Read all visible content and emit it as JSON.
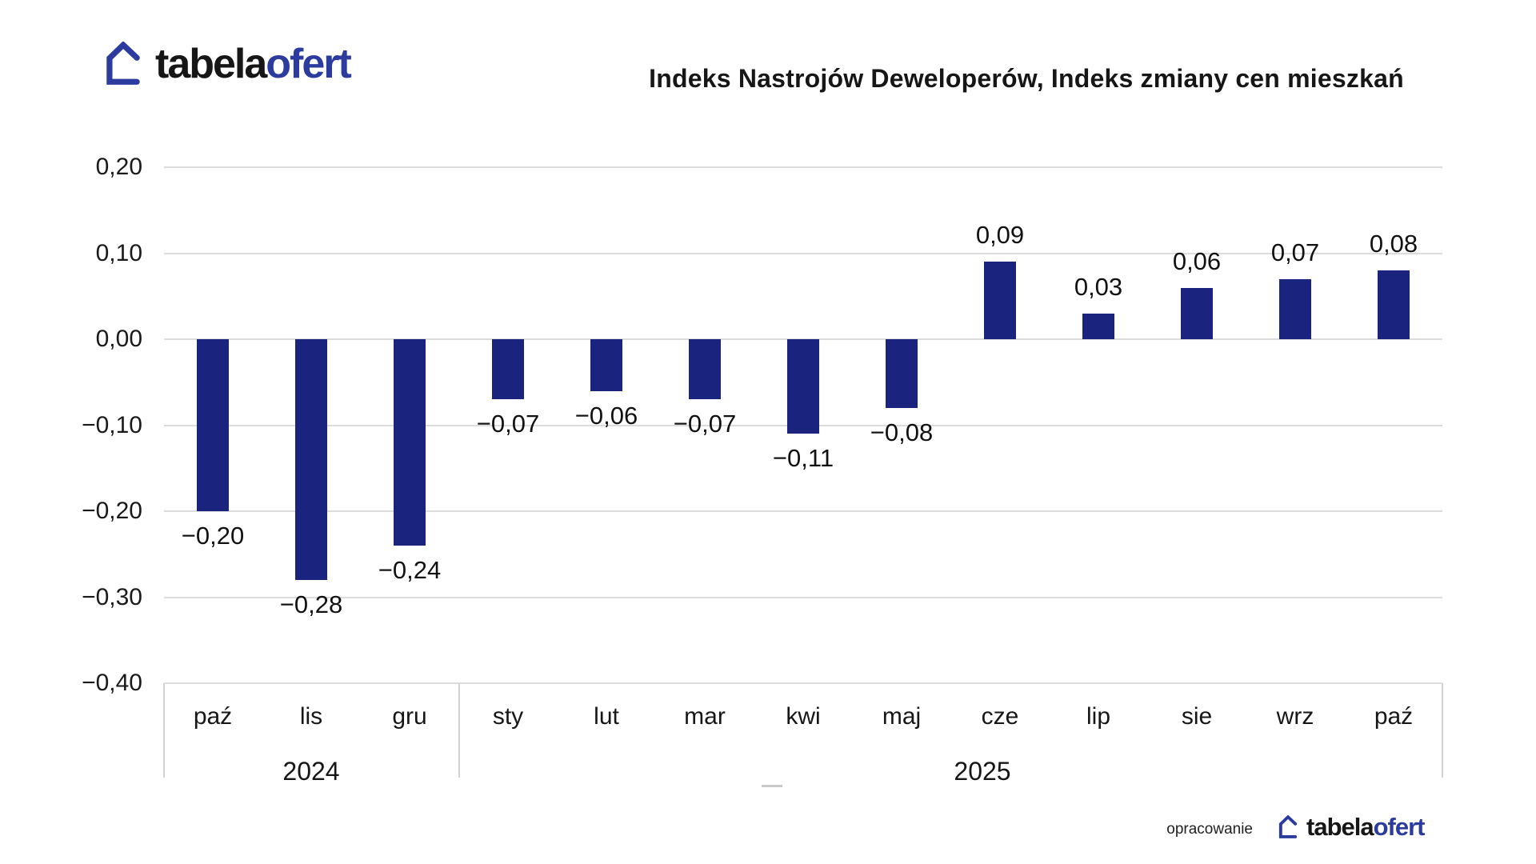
{
  "brand": {
    "name_black": "tabela",
    "name_blue": "ofert"
  },
  "header": {
    "title": "Indeks Nastrojów Deweloperów, Indeks zmiany cen mieszkań"
  },
  "footer": {
    "credit": "opracowanie",
    "brand_black": "tabela",
    "brand_blue": "ofert"
  },
  "colors": {
    "bar": "#1a237e",
    "brand_blue": "#2b3c9e",
    "grid": "#dcdcdc",
    "box_border": "#d2d2d2",
    "text": "#161616"
  },
  "chart_data": {
    "type": "bar",
    "title": "Indeks Nastrojów Deweloperów, Indeks zmiany cen mieszkań",
    "categories": [
      "paź",
      "lis",
      "gru",
      "sty",
      "lut",
      "mar",
      "kwi",
      "maj",
      "cze",
      "lip",
      "sie",
      "wrz",
      "paź"
    ],
    "values": [
      -0.2,
      -0.28,
      -0.24,
      -0.07,
      -0.06,
      -0.07,
      -0.11,
      -0.08,
      0.09,
      0.03,
      0.06,
      0.07,
      0.08
    ],
    "bar_labels": [
      "−0,20",
      "−0,28",
      "−0,24",
      "−0,07",
      "−0,06",
      "−0,07",
      "−0,11",
      "−0,08",
      "0,09",
      "0,03",
      "0,06",
      "0,07",
      "0,08"
    ],
    "y_ticks": [
      {
        "label": "0,20",
        "value": 0.2
      },
      {
        "label": "0,10",
        "value": 0.1
      },
      {
        "label": "0,00",
        "value": 0.0
      },
      {
        "label": "−0,10",
        "value": -0.1
      },
      {
        "label": "−0,20",
        "value": -0.2
      },
      {
        "label": "−0,30",
        "value": -0.3
      },
      {
        "label": "−0,40",
        "value": -0.4
      }
    ],
    "ylim": [
      -0.4,
      0.2
    ],
    "xlabel": "",
    "ylabel": "",
    "grid": true,
    "legend": false,
    "year_groups": [
      {
        "label": "2024",
        "span": [
          0,
          2
        ]
      },
      {
        "label": "2025",
        "span": [
          3,
          12
        ]
      }
    ]
  }
}
